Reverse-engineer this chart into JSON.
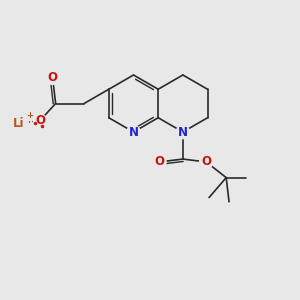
{
  "bg_color": "#e8e8e8",
  "bond_color": "#2a2a2a",
  "n_color": "#2222dd",
  "o_color": "#cc1111",
  "li_color": "#bb5522",
  "bond_width": 1.2,
  "font_size_atom": 8.5,
  "fig_width": 3.0,
  "fig_height": 3.0,
  "dpi": 100,
  "xlim": [
    0,
    10
  ],
  "ylim": [
    0,
    10
  ]
}
